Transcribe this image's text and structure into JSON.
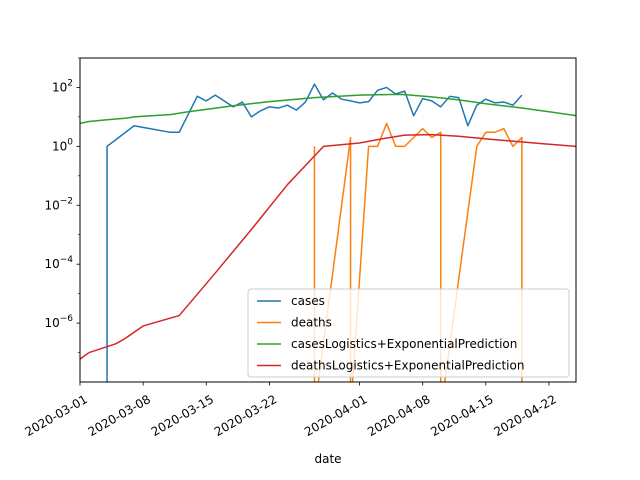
{
  "chart_data": {
    "type": "line",
    "xlabel": "date",
    "x_scale": "date",
    "y_scale": "log",
    "xlim": [
      "2020-03-01",
      "2020-04-25"
    ],
    "ylim": [
      1e-08,
      1000
    ],
    "x_tick_labels": [
      "2020-03-01",
      "2020-03-08",
      "2020-03-15",
      "2020-03-22",
      "2020-04-01",
      "2020-04-08",
      "2020-04-15",
      "2020-04-22"
    ],
    "y_ticks": [
      {
        "value": 1e-06,
        "base": "10",
        "exp": "−6"
      },
      {
        "value": 0.0001,
        "base": "10",
        "exp": "−4"
      },
      {
        "value": 0.01,
        "base": "10",
        "exp": "−2"
      },
      {
        "value": 1,
        "base": "10",
        "exp": "0"
      },
      {
        "value": 100,
        "base": "10",
        "exp": "2"
      }
    ],
    "legend_position": "lower-right",
    "grid": false,
    "series": [
      {
        "name": "cases",
        "color": "#1f77b4",
        "points": [
          [
            "2020-03-04",
            1e-09
          ],
          [
            "2020-03-04",
            1
          ],
          [
            "2020-03-07",
            5
          ],
          [
            "2020-03-11",
            3
          ],
          [
            "2020-03-12",
            3
          ],
          [
            "2020-03-14",
            50
          ],
          [
            "2020-03-15",
            35
          ],
          [
            "2020-03-16",
            55
          ],
          [
            "2020-03-18",
            22
          ],
          [
            "2020-03-19",
            32
          ],
          [
            "2020-03-20",
            10
          ],
          [
            "2020-03-21",
            16
          ],
          [
            "2020-03-22",
            22
          ],
          [
            "2020-03-23",
            20
          ],
          [
            "2020-03-24",
            25
          ],
          [
            "2020-03-25",
            17
          ],
          [
            "2020-03-26",
            32
          ],
          [
            "2020-03-27",
            130
          ],
          [
            "2020-03-28",
            38
          ],
          [
            "2020-03-29",
            65
          ],
          [
            "2020-03-30",
            40
          ],
          [
            "2020-03-31",
            35
          ],
          [
            "2020-04-01",
            30
          ],
          [
            "2020-04-02",
            33
          ],
          [
            "2020-04-03",
            80
          ],
          [
            "2020-04-04",
            100
          ],
          [
            "2020-04-05",
            60
          ],
          [
            "2020-04-06",
            75
          ],
          [
            "2020-04-07",
            11
          ],
          [
            "2020-04-08",
            42
          ],
          [
            "2020-04-09",
            35
          ],
          [
            "2020-04-10",
            22
          ],
          [
            "2020-04-11",
            50
          ],
          [
            "2020-04-12",
            45
          ],
          [
            "2020-04-13",
            5
          ],
          [
            "2020-04-14",
            25
          ],
          [
            "2020-04-15",
            40
          ],
          [
            "2020-04-16",
            30
          ],
          [
            "2020-04-17",
            32
          ],
          [
            "2020-04-18",
            25
          ],
          [
            "2020-04-19",
            55
          ]
        ]
      },
      {
        "name": "deaths",
        "color": "#ff7f0e",
        "points": [
          [
            "2020-03-27",
            1
          ],
          [
            "2020-03-27",
            1e-09
          ],
          [
            "2020-03-27",
            1e-09
          ],
          [
            "2020-03-31",
            2
          ],
          [
            "2020-03-31",
            1e-09
          ],
          [
            "2020-03-31",
            1e-09
          ],
          [
            "2020-04-02",
            1
          ],
          [
            "2020-04-03",
            1
          ],
          [
            "2020-04-04",
            6
          ],
          [
            "2020-04-05",
            1
          ],
          [
            "2020-04-06",
            1
          ],
          [
            "2020-04-08",
            4
          ],
          [
            "2020-04-09",
            2
          ],
          [
            "2020-04-10",
            3
          ],
          [
            "2020-04-10",
            1e-09
          ],
          [
            "2020-04-10",
            1e-09
          ],
          [
            "2020-04-14",
            1
          ],
          [
            "2020-04-15",
            3
          ],
          [
            "2020-04-16",
            3
          ],
          [
            "2020-04-17",
            4
          ],
          [
            "2020-04-18",
            1
          ],
          [
            "2020-04-19",
            2
          ],
          [
            "2020-04-19",
            1e-09
          ]
        ]
      },
      {
        "name": "casesLogistics+ExponentialPrediction",
        "color": "#2ca02c",
        "points": [
          [
            "2020-03-01",
            6
          ],
          [
            "2020-03-02",
            7
          ],
          [
            "2020-03-04",
            8
          ],
          [
            "2020-03-06",
            9
          ],
          [
            "2020-03-07",
            10
          ],
          [
            "2020-03-08",
            10.5
          ],
          [
            "2020-03-11",
            12
          ],
          [
            "2020-03-13",
            15
          ],
          [
            "2020-03-15",
            18
          ],
          [
            "2020-03-18",
            24
          ],
          [
            "2020-03-22",
            33
          ],
          [
            "2020-03-27",
            45
          ],
          [
            "2020-04-01",
            55
          ],
          [
            "2020-04-05",
            58
          ],
          [
            "2020-04-06",
            57
          ],
          [
            "2020-04-09",
            48
          ],
          [
            "2020-04-12",
            38
          ],
          [
            "2020-04-15",
            28
          ],
          [
            "2020-04-19",
            20
          ],
          [
            "2020-04-22",
            15
          ],
          [
            "2020-04-25",
            11
          ]
        ]
      },
      {
        "name": "deathsLogistics+ExponentialPrediction",
        "color": "#d62728",
        "points": [
          [
            "2020-03-01",
            6e-08
          ],
          [
            "2020-03-02",
            1e-07
          ],
          [
            "2020-03-05",
            2e-07
          ],
          [
            "2020-03-06",
            3e-07
          ],
          [
            "2020-03-08",
            8e-07
          ],
          [
            "2020-03-12",
            1.8e-06
          ],
          [
            "2020-03-16",
            5e-05
          ],
          [
            "2020-03-20",
            0.0015
          ],
          [
            "2020-03-24",
            0.05
          ],
          [
            "2020-03-28",
            1
          ],
          [
            "2020-04-01",
            1.3
          ],
          [
            "2020-04-03",
            1.7
          ],
          [
            "2020-04-06",
            2.4
          ],
          [
            "2020-04-09",
            2.5
          ],
          [
            "2020-04-12",
            2.2
          ],
          [
            "2020-04-15",
            1.8
          ],
          [
            "2020-04-18",
            1.5
          ],
          [
            "2020-04-21",
            1.25
          ],
          [
            "2020-04-25",
            1
          ]
        ]
      }
    ]
  }
}
